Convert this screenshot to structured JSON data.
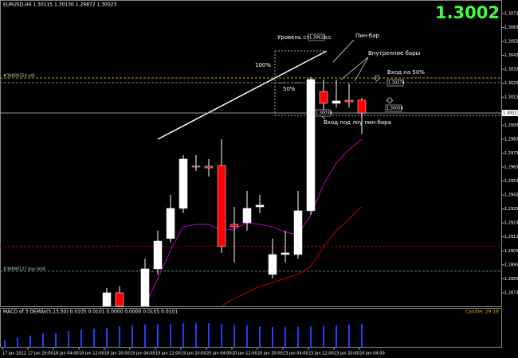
{
  "chart_data": {
    "type": "candlestick",
    "title": "EURUSD,H4  1.30115 1.30130 1.29872 1.30023",
    "price": "1.3002",
    "categories": [
      "17 Jan 2012",
      null,
      "17 Jan 20:00",
      null,
      "18 Jan 04:00",
      null,
      "18 Jan 12:00",
      null,
      "18 Jan 20:00",
      null,
      "19 Jan 04:00",
      null,
      "19 Jan 12:00",
      null,
      "19 Jan 20:00",
      null,
      "20 Jan 04:00",
      null,
      "20 Jan 12:00",
      null,
      "20 Jan 20:00",
      null,
      "23 Jan 04:00",
      null,
      "23 Jan 12:00",
      null,
      "23 Jan 20:00",
      null,
      "24 Jan 04:00"
    ],
    "open": [
      null,
      null,
      null,
      null,
      null,
      null,
      null,
      null,
      1.2864,
      1.28736,
      null,
      1.2864,
      1.28907,
      1.29124,
      1.2934,
      1.29642,
      1.29642,
      1.29647,
      1.29226,
      1.29237,
      1.29351,
      1.28867,
      1.2901,
      1.2901,
      1.29323,
      1.30177,
      1.30092,
      1.30114,
      1.30115
    ],
    "high": [
      null,
      null,
      null,
      null,
      null,
      null,
      null,
      null,
      1.2877,
      1.28782,
      null,
      1.28981,
      1.29181,
      1.29437,
      1.29722,
      1.29722,
      1.29693,
      1.29835,
      1.29351,
      1.29465,
      1.29437,
      1.29124,
      1.29181,
      1.29465,
      1.3028,
      1.30263,
      1.30263,
      1.30234,
      1.3013
    ],
    "low": [
      null,
      null,
      null,
      null,
      null,
      null,
      null,
      null,
      1.2864,
      1.2864,
      null,
      1.2864,
      1.28867,
      1.29095,
      1.29306,
      1.29608,
      1.29568,
      1.29021,
      1.28953,
      1.29181,
      1.29306,
      1.28839,
      1.28953,
      1.28981,
      1.29294,
      1.30035,
      1.30063,
      1.30063,
      1.29872
    ],
    "close": [
      null,
      null,
      null,
      null,
      null,
      null,
      null,
      null,
      1.28736,
      1.2864,
      null,
      1.28907,
      1.29106,
      1.2934,
      1.29693,
      1.29636,
      1.2963,
      1.29067,
      1.29209,
      1.2934,
      1.29363,
      1.2901,
      1.29021,
      1.29323,
      1.30263,
      1.30092,
      1.30109,
      1.30103,
      1.30023
    ],
    "bull_color": "#ffffff",
    "bear_color": "#ff0000",
    "lines": [
      {
        "color": "#c000c0",
        "values": [
          null,
          null,
          null,
          null,
          null,
          null,
          null,
          null,
          null,
          null,
          null,
          1.2864,
          1.28839,
          1.29038,
          1.29209,
          1.29226,
          1.29226,
          1.29181,
          1.29192,
          1.29237,
          1.29226,
          1.29209,
          1.29169,
          1.29152,
          1.29294,
          1.29511,
          1.29665,
          1.29761,
          1.29835
        ]
      },
      {
        "color": "#c00000",
        "values": [
          null,
          null,
          null,
          null,
          null,
          null,
          null,
          null,
          null,
          null,
          null,
          null,
          null,
          null,
          null,
          null,
          null,
          1.2864,
          1.28696,
          1.28736,
          1.28782,
          1.2881,
          1.28839,
          1.28867,
          1.28924,
          1.29067,
          1.29181,
          1.29266,
          1.29351
        ]
      }
    ],
    "levels": [
      {
        "label": "#36899254 sell",
        "value": 1.30274,
        "color": "#c8a000"
      },
      {
        "value": 1.3024,
        "color": "#808040"
      },
      {
        "value": 1.29067,
        "color": "#a00000"
      },
      {
        "label": "#36890127 buy limit",
        "value": 1.2889,
        "color": "#40a040"
      }
    ],
    "current": 1.30023,
    "ylim": [
      1.28639,
      1.30832
    ],
    "yticks": [
      1.28736,
      1.28836,
      1.28936,
      1.29036,
      1.29136,
      1.29236,
      1.29336,
      1.29436,
      1.29536,
      1.29636,
      1.29736,
      1.29836,
      1.29936,
      1.30136,
      1.30236,
      1.30336,
      1.30436,
      1.30536,
      1.30636,
      1.30736
    ],
    "annotations": [
      "Уровень стоп лосс",
      "1.30622",
      "Пин-бар",
      "Внутренние бары",
      "Вход на 50%",
      "1.30274",
      "1.30058",
      "1.30030",
      "Вход под лоу пин-бара",
      "100%",
      "50%"
    ],
    "macd": {
      "title": "MACD of 3 DEMAs(5,13,50) 0.0105 0.0101 0.0000 0.0000 0.0105 0.0101",
      "timer": "Candle:  29:18",
      "color": "#2040ff",
      "values": [
        0.003,
        0.004,
        0.005,
        0.006,
        0.006,
        0.007,
        0.0075,
        0.008,
        0.0085,
        0.009,
        0.0095,
        0.0098,
        0.01,
        0.0102,
        0.0104,
        0.0105,
        0.0104,
        0.0101,
        0.0098,
        0.0095,
        0.009,
        0.0088,
        0.0087,
        0.0088,
        0.009,
        0.0092,
        0.0095,
        0.0098,
        0.0101
      ],
      "ylim": [
        0,
        0.014
      ]
    }
  }
}
